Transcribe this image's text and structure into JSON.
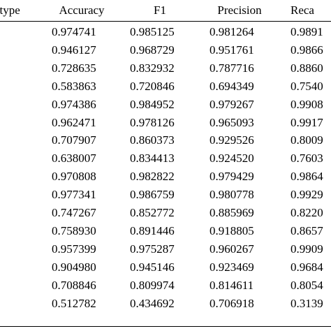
{
  "table": {
    "headers": [
      "atype",
      "Accuracy",
      "F1",
      "Precision",
      "Reca"
    ],
    "rows": [
      [
        "0.974741",
        "0.985125",
        "0.981264",
        "0.9891"
      ],
      [
        "0.946127",
        "0.968729",
        "0.951761",
        "0.9866"
      ],
      [
        "0.728635",
        "0.832932",
        "0.787716",
        "0.8860"
      ],
      [
        "0.583863",
        "0.720846",
        "0.694349",
        "0.7540"
      ],
      [
        "0.974386",
        "0.984952",
        "0.979267",
        "0.9908"
      ],
      [
        "0.962471",
        "0.978126",
        "0.965093",
        "0.9917"
      ],
      [
        "0.707907",
        "0.860373",
        "0.929526",
        "0.8009"
      ],
      [
        "0.638007",
        "0.834413",
        "0.924520",
        "0.7603"
      ],
      [
        "0.970808",
        "0.982822",
        "0.979429",
        "0.9864"
      ],
      [
        "0.977341",
        "0.986759",
        "0.980778",
        "0.9929"
      ],
      [
        "0.747267",
        "0.852772",
        "0.885969",
        "0.8220"
      ],
      [
        "0.758930",
        "0.891446",
        "0.918805",
        "0.8657"
      ],
      [
        "0.957399",
        "0.975287",
        "0.960267",
        "0.9909"
      ],
      [
        "0.904980",
        "0.945146",
        "0.923469",
        "0.9684"
      ],
      [
        "0.708846",
        "0.809974",
        "0.814611",
        "0.8054"
      ],
      [
        "0.512782",
        "0.434692",
        "0.706918",
        "0.3139"
      ]
    ]
  }
}
